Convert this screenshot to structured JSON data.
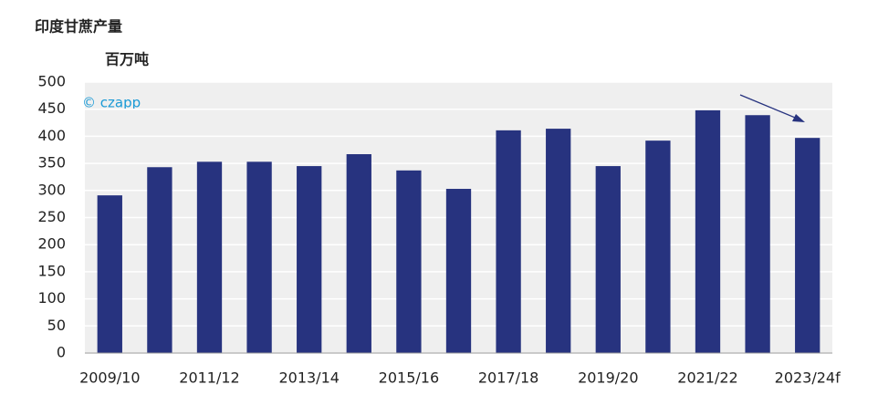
{
  "chart_data": {
    "type": "bar",
    "title": "印度甘蔗产量",
    "subtitle": "百万吨",
    "watermark": "© czapp",
    "categories": [
      "2009/10",
      null,
      "2011/12",
      null,
      "2013/14",
      null,
      "2015/16",
      null,
      "2017/18",
      null,
      "2019/20",
      null,
      "2021/22",
      null,
      "2023/24f"
    ],
    "values": [
      291,
      343,
      353,
      353,
      345,
      367,
      337,
      303,
      411,
      414,
      345,
      392,
      448,
      439,
      397
    ],
    "color": "#27337f",
    "ylim": [
      0,
      500
    ],
    "yticks": [
      0,
      50,
      100,
      150,
      200,
      250,
      300,
      350,
      400,
      450,
      500
    ],
    "grid": true
  }
}
